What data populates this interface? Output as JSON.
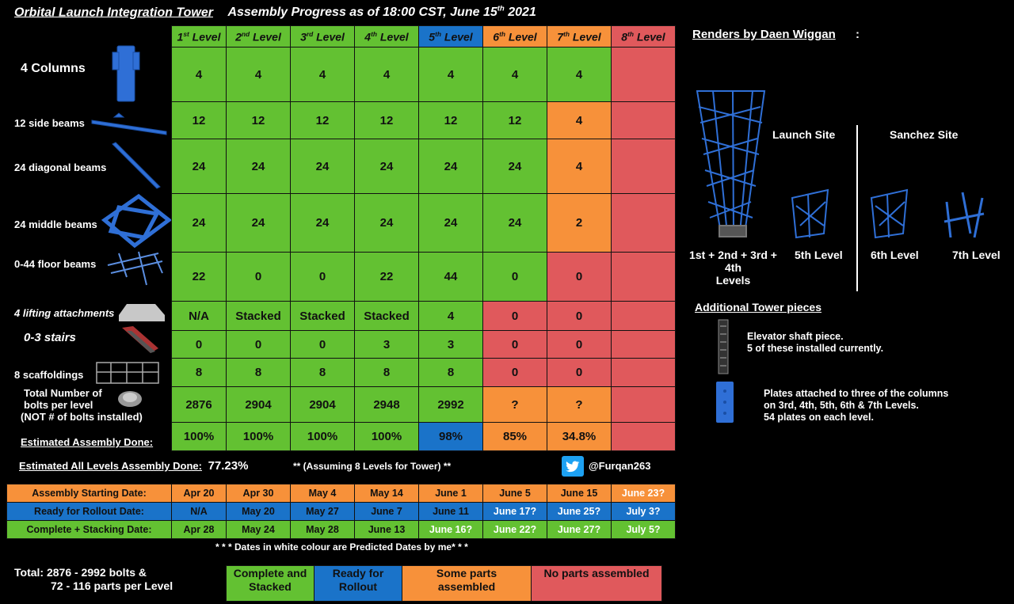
{
  "title": {
    "main": "Orbital Launch Integration Tower",
    "progress": "Assembly Progress as of 18:00 CST, June 15",
    "progress_sup": "th",
    "year": " 2021"
  },
  "levels": [
    {
      "num": "1",
      "sup": "st",
      "word": " Level"
    },
    {
      "num": "2",
      "sup": "nd",
      "word": " Level"
    },
    {
      "num": "3",
      "sup": "rd",
      "word": " Level"
    },
    {
      "num": "4",
      "sup": "th",
      "word": " Level"
    },
    {
      "num": "5",
      "sup": "th",
      "word": " Level"
    },
    {
      "num": "6",
      "sup": "th",
      "word": " Level"
    },
    {
      "num": "7",
      "sup": "th",
      "word": " Level"
    },
    {
      "num": "8",
      "sup": "th",
      "word": " Level"
    }
  ],
  "part_labels": [
    "4 Columns",
    "12 side beams",
    "24 diagonal beams",
    "24 middle beams",
    "0-44 floor beams",
    "4 lifting attachments",
    "0-3 stairs",
    "8 scaffoldings",
    "Total Number of",
    "bolts per level",
    "(NOT # of bolts installed)",
    "Estimated Assembly Done:"
  ],
  "rows": [
    [
      "4",
      "4",
      "4",
      "4",
      "4",
      "4",
      "4",
      ""
    ],
    [
      "12",
      "12",
      "12",
      "12",
      "12",
      "12",
      "4",
      ""
    ],
    [
      "24",
      "24",
      "24",
      "24",
      "24",
      "24",
      "4",
      ""
    ],
    [
      "24",
      "24",
      "24",
      "24",
      "24",
      "24",
      "2",
      ""
    ],
    [
      "22",
      "0",
      "0",
      "22",
      "44",
      "0",
      "0",
      ""
    ],
    [
      "N/A",
      "Stacked",
      "Stacked",
      "Stacked",
      "4",
      "0",
      "0",
      ""
    ],
    [
      "0",
      "0",
      "0",
      "3",
      "3",
      "0",
      "0",
      ""
    ],
    [
      "8",
      "8",
      "8",
      "8",
      "8",
      "0",
      "0",
      ""
    ],
    [
      "2876",
      "2904",
      "2904",
      "2948",
      "2992",
      "?",
      "?",
      ""
    ],
    [
      "100%",
      "100%",
      "100%",
      "100%",
      "98%",
      "85%",
      "34.8%",
      ""
    ]
  ],
  "all_levels": {
    "label": "Estimated All Levels Assembly Done:",
    "value": "77.23%",
    "assumption": "** (Assuming 8 Levels for Tower) **"
  },
  "twitter_handle": "@Furqan263",
  "schedule": [
    {
      "label": "Assembly Starting Date:",
      "values": [
        "Apr 20",
        "Apr 30",
        "May 4",
        "May 14",
        "June 1",
        "June 5",
        "June 15",
        "June 23?"
      ]
    },
    {
      "label": "Ready for Rollout Date:",
      "values": [
        "N/A",
        "May 20",
        "May 27",
        "June 7",
        "June 11",
        "June 17?",
        "June 25?",
        "July 3?"
      ]
    },
    {
      "label": "Complete + Stacking Date:",
      "values": [
        "Apr 28",
        "May 24",
        "May 28",
        "June 13",
        "June 16?",
        "June 22?",
        "June 27?",
        "July 5?"
      ]
    }
  ],
  "note": "* * * Dates in white colour are Predicted Dates by me* * *",
  "total": {
    "line1": "Total:  2876 - 2992 bolts &",
    "line2": "72 - 116 parts per Level"
  },
  "legend": [
    {
      "line1": "Complete and",
      "line2": "Stacked"
    },
    {
      "line1": "Ready for",
      "line2": "Rollout"
    },
    {
      "line1": "Some parts",
      "line2": "assembled"
    },
    {
      "line1": "No parts assembled",
      "line2": ""
    }
  ],
  "renders": {
    "heading": "Renders by Daen Wiggan",
    "colon": ":",
    "launch_site": "Launch Site",
    "sanchez_site": "Sanchez Site",
    "levels_1_4_a": "1",
    "levels_1_4_full": "1st + 2nd + 3rd + 4th",
    "levels_word": "Levels",
    "l5": "5th Level",
    "l6": "6th Level",
    "l7": "7th Level"
  },
  "additional": {
    "heading": "Additional Tower pieces",
    "elevator1": "Elevator shaft piece.",
    "elevator2": "5 of these installed currently.",
    "plates1": "Plates attached to three of the columns",
    "plates2": "on 3rd, 4th, 5th, 6th & 7th Levels.",
    "plates3": "54 plates on each level."
  },
  "colors": {
    "green": "#63c132",
    "blue": "#1a73c9",
    "orange": "#f7913a",
    "red": "#e0595c",
    "render_blue": "#2f6fd6"
  }
}
